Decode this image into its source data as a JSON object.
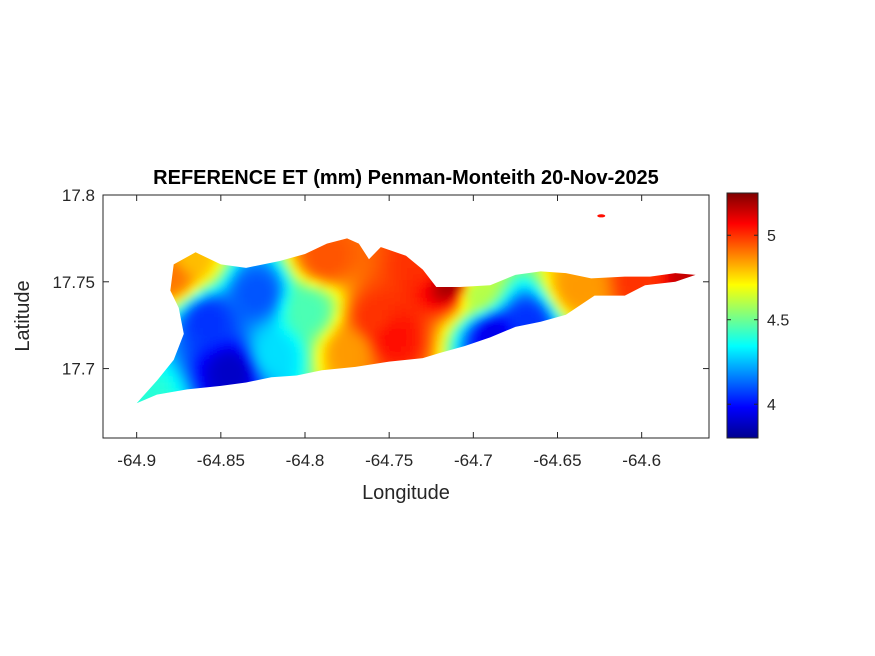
{
  "chart_data": {
    "type": "heatmap",
    "title": "REFERENCE ET (mm) Penman-Monteith 20-Nov-2025",
    "xlabel": "Longitude",
    "ylabel": "Latitude",
    "xlim": [
      -64.92,
      -64.56
    ],
    "ylim": [
      17.66,
      17.8
    ],
    "xticks": [
      -64.9,
      -64.85,
      -64.8,
      -64.75,
      -64.7,
      -64.65,
      -64.6
    ],
    "xtick_labels": [
      "-64.9",
      "-64.85",
      "-64.8",
      "-64.75",
      "-64.7",
      "-64.65",
      "-64.6"
    ],
    "yticks": [
      17.7,
      17.75,
      17.8
    ],
    "ytick_labels": [
      "17.7",
      "17.75",
      "17.8"
    ],
    "colorbar": {
      "colormap": "jet",
      "min": 3.8,
      "max": 5.25,
      "ticks": [
        4,
        4.5,
        5
      ],
      "tick_labels": [
        "4",
        "4.5",
        "5"
      ],
      "location": "right"
    },
    "grid": false,
    "region_outline_lonlat": [
      [
        -64.9,
        17.68
      ],
      [
        -64.888,
        17.693
      ],
      [
        -64.878,
        17.705
      ],
      [
        -64.872,
        17.72
      ],
      [
        -64.875,
        17.735
      ],
      [
        -64.88,
        17.745
      ],
      [
        -64.878,
        17.76
      ],
      [
        -64.865,
        17.767
      ],
      [
        -64.85,
        17.76
      ],
      [
        -64.835,
        17.758
      ],
      [
        -64.815,
        17.762
      ],
      [
        -64.8,
        17.766
      ],
      [
        -64.787,
        17.772
      ],
      [
        -64.775,
        17.775
      ],
      [
        -64.768,
        17.772
      ],
      [
        -64.762,
        17.763
      ],
      [
        -64.755,
        17.77
      ],
      [
        -64.74,
        17.765
      ],
      [
        -64.73,
        17.757
      ],
      [
        -64.722,
        17.747
      ],
      [
        -64.708,
        17.747
      ],
      [
        -64.69,
        17.748
      ],
      [
        -64.675,
        17.754
      ],
      [
        -64.66,
        17.756
      ],
      [
        -64.645,
        17.755
      ],
      [
        -64.63,
        17.752
      ],
      [
        -64.61,
        17.753
      ],
      [
        -64.595,
        17.753
      ],
      [
        -64.58,
        17.755
      ],
      [
        -64.568,
        17.754
      ],
      [
        -64.58,
        17.75
      ],
      [
        -64.598,
        17.748
      ],
      [
        -64.61,
        17.742
      ],
      [
        -64.628,
        17.742
      ],
      [
        -64.645,
        17.731
      ],
      [
        -64.66,
        17.727
      ],
      [
        -64.675,
        17.724
      ],
      [
        -64.69,
        17.718
      ],
      [
        -64.705,
        17.713
      ],
      [
        -64.72,
        17.709
      ],
      [
        -64.73,
        17.706
      ],
      [
        -64.75,
        17.704
      ],
      [
        -64.77,
        17.701
      ],
      [
        -64.79,
        17.699
      ],
      [
        -64.805,
        17.696
      ],
      [
        -64.82,
        17.695
      ],
      [
        -64.835,
        17.692
      ],
      [
        -64.85,
        17.69
      ],
      [
        -64.87,
        17.688
      ],
      [
        -64.888,
        17.685
      ]
    ],
    "value_field_seeds": [
      {
        "lon": -64.845,
        "lat": 17.7,
        "value": 3.9
      },
      {
        "lon": -64.86,
        "lat": 17.73,
        "value": 4.05
      },
      {
        "lon": -64.83,
        "lat": 17.745,
        "value": 4.1
      },
      {
        "lon": -64.88,
        "lat": 17.755,
        "value": 4.9
      },
      {
        "lon": -64.87,
        "lat": 17.765,
        "value": 4.8
      },
      {
        "lon": -64.8,
        "lat": 17.735,
        "value": 4.45
      },
      {
        "lon": -64.79,
        "lat": 17.765,
        "value": 4.95
      },
      {
        "lon": -64.76,
        "lat": 17.73,
        "value": 5.0
      },
      {
        "lon": -64.75,
        "lat": 17.72,
        "value": 5.05
      },
      {
        "lon": -64.775,
        "lat": 17.712,
        "value": 4.85
      },
      {
        "lon": -64.715,
        "lat": 17.75,
        "value": 5.2
      },
      {
        "lon": -64.73,
        "lat": 17.762,
        "value": 5.0
      },
      {
        "lon": -64.69,
        "lat": 17.722,
        "value": 3.95
      },
      {
        "lon": -64.67,
        "lat": 17.728,
        "value": 4.05
      },
      {
        "lon": -64.64,
        "lat": 17.748,
        "value": 4.85
      },
      {
        "lon": -64.6,
        "lat": 17.752,
        "value": 5.0
      },
      {
        "lon": -64.575,
        "lat": 17.754,
        "value": 5.15
      },
      {
        "lon": -64.7,
        "lat": 17.745,
        "value": 4.6
      },
      {
        "lon": -64.82,
        "lat": 17.71,
        "value": 4.3
      },
      {
        "lon": -64.895,
        "lat": 17.682,
        "value": 4.4
      }
    ]
  }
}
